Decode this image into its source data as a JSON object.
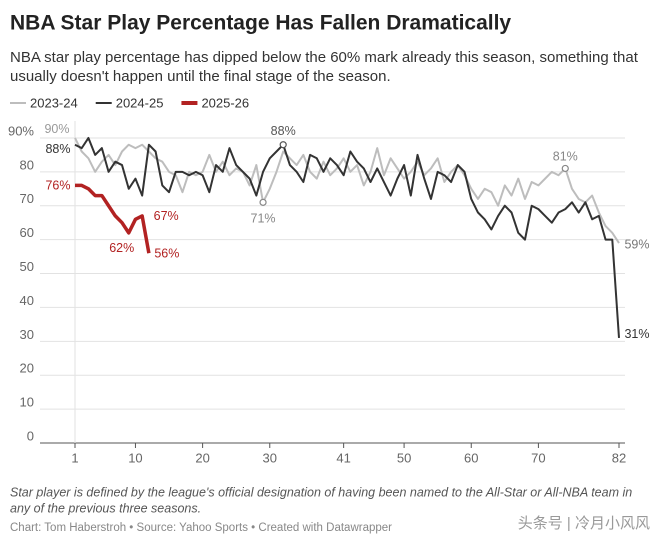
{
  "chart_data": {
    "type": "line",
    "title": "NBA Star Play Percentage Has Fallen Dramatically",
    "subtitle": [
      "NBA star play percentage has dipped below the 60% mark already this season, something that",
      "usually doesn't happen until the final stage of the season."
    ],
    "x": [
      1,
      2,
      3,
      4,
      5,
      6,
      7,
      8,
      9,
      10,
      11,
      12,
      13,
      14,
      15,
      16,
      17,
      18,
      19,
      20,
      21,
      22,
      23,
      24,
      25,
      26,
      27,
      28,
      29,
      30,
      31,
      32,
      33,
      34,
      35,
      36,
      37,
      38,
      39,
      40,
      41,
      42,
      43,
      44,
      45,
      46,
      47,
      48,
      49,
      50,
      51,
      52,
      53,
      54,
      55,
      56,
      57,
      58,
      59,
      60,
      61,
      62,
      63,
      64,
      65,
      66,
      67,
      68,
      69,
      70,
      71,
      72,
      73,
      74,
      75,
      76,
      77,
      78,
      79,
      80,
      81,
      82
    ],
    "series": [
      {
        "name": "2023-24",
        "color": "#bdbdbd",
        "values": [
          90,
          86,
          84,
          80,
          83,
          85,
          82,
          86,
          88,
          87,
          88,
          86,
          84,
          83,
          80,
          79,
          74,
          80,
          79,
          80,
          85,
          80,
          83,
          79,
          81,
          80,
          76,
          82,
          71,
          75,
          80,
          86,
          84,
          82,
          85,
          80,
          78,
          83,
          79,
          81,
          84,
          80,
          82,
          76,
          80,
          87,
          79,
          84,
          81,
          78,
          80,
          83,
          79,
          81,
          84,
          77,
          80,
          82,
          79,
          75,
          72,
          75,
          74,
          70,
          76,
          73,
          78,
          72,
          77,
          76,
          78,
          80,
          79,
          81,
          75,
          72,
          71,
          73,
          68,
          64,
          62,
          59
        ]
      },
      {
        "name": "2024-25",
        "color": "#333333",
        "values": [
          88,
          87,
          90,
          85,
          87,
          80,
          83,
          82,
          75,
          78,
          73,
          88,
          86,
          76,
          74,
          80,
          80,
          79,
          80,
          79,
          74,
          82,
          80,
          87,
          82,
          80,
          78,
          73,
          80,
          84,
          86,
          88,
          82,
          80,
          77,
          85,
          84,
          80,
          84,
          82,
          79,
          86,
          83,
          81,
          77,
          81,
          77,
          73,
          78,
          82,
          73,
          85,
          78,
          72,
          80,
          79,
          77,
          82,
          80,
          72,
          68,
          66,
          63,
          67,
          70,
          68,
          62,
          60,
          70,
          69,
          67,
          65,
          68,
          69,
          71,
          68,
          71,
          66,
          67,
          60,
          60,
          31
        ]
      },
      {
        "name": "2025-26",
        "color": "#b22222",
        "values": [
          76,
          76,
          75,
          73,
          73,
          70,
          67,
          65,
          62,
          66,
          67,
          56,
          null,
          null,
          null,
          null,
          null,
          null,
          null,
          null,
          null,
          null,
          null,
          null,
          null,
          null,
          null,
          null,
          null,
          null,
          null,
          null,
          null,
          null,
          null,
          null,
          null,
          null,
          null,
          null,
          null,
          null,
          null,
          null,
          null,
          null,
          null,
          null,
          null,
          null,
          null,
          null,
          null,
          null,
          null,
          null,
          null,
          null,
          null,
          null,
          null,
          null,
          null,
          null,
          null,
          null,
          null,
          null,
          null,
          null,
          null,
          null,
          null,
          null,
          null,
          null,
          null,
          null,
          null,
          null,
          null,
          null
        ]
      }
    ],
    "xlim": [
      1,
      82
    ],
    "xticks": [
      1,
      10,
      20,
      30,
      41,
      50,
      60,
      70,
      82
    ],
    "ylim": [
      0,
      95
    ],
    "yticks": [
      0,
      10,
      20,
      30,
      40,
      50,
      60,
      70,
      80,
      {
        "value": 90,
        "label": "90%"
      }
    ],
    "grid": true,
    "annotations": [
      {
        "text": "90%",
        "x": 1,
        "y": 90
      },
      {
        "text": "88%",
        "x": 1,
        "y": 88
      },
      {
        "text": "76%",
        "x": 1,
        "y": 76
      },
      {
        "text": "88%",
        "x": 32,
        "y": 88
      },
      {
        "text": "71%",
        "x": 29,
        "y": 71
      },
      {
        "text": "62%",
        "x": 9,
        "y": 62
      },
      {
        "text": "67%",
        "x": 11,
        "y": 67
      },
      {
        "text": "56%",
        "x": 12,
        "y": 56
      },
      {
        "text": "81%",
        "x": 74,
        "y": 81
      },
      {
        "text": "59%",
        "x": 82,
        "y": 59
      },
      {
        "text": "31%",
        "x": 82,
        "y": 31
      }
    ],
    "footnote": [
      "Star player is defined by the league's official designation of having been named to the All-Star or All-NBA team in",
      "any of the previous three seasons."
    ],
    "source": "Chart: Tom Haberstroh • Source: Yahoo Sports • Created with Datawrapper",
    "watermark": "头条号 | 冷月小风风"
  }
}
